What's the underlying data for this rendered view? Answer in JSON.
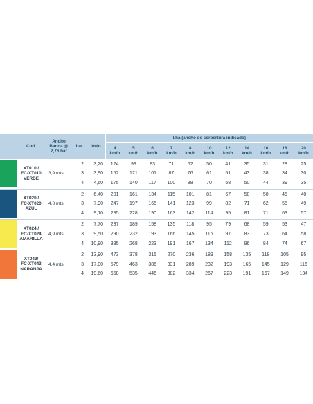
{
  "header": {
    "code": "Cod.",
    "width_lines": [
      "Ancho",
      "Banda @",
      "2,76 bar"
    ],
    "bar": "bar",
    "lmin": "l/min",
    "lha": "l/ha (ancho de corbertura indicado)",
    "speeds": [
      {
        "value": "4",
        "unit": "km/h"
      },
      {
        "value": "5",
        "unit": "km/h"
      },
      {
        "value": "6",
        "unit": "km/h"
      },
      {
        "value": "7",
        "unit": "km/h"
      },
      {
        "value": "8",
        "unit": "km/h"
      },
      {
        "value": "10",
        "unit": "km/h"
      },
      {
        "value": "12",
        "unit": "km/h"
      },
      {
        "value": "14",
        "unit": "km/h"
      },
      {
        "value": "16",
        "unit": "km/h"
      },
      {
        "value": "18",
        "unit": "km/h"
      },
      {
        "value": "20",
        "unit": "km/h"
      }
    ]
  },
  "groups": [
    {
      "code_lines": [
        "XT010 /",
        "FC-XT010",
        "VERDE"
      ],
      "width": "3,9 mts.",
      "color": "#1aa35a",
      "rows": [
        {
          "bar": "2",
          "lmin": "3,20",
          "vals": [
            "124",
            "99",
            "83",
            "71",
            "62",
            "50",
            "41",
            "35",
            "31",
            "28",
            "25"
          ]
        },
        {
          "bar": "3",
          "lmin": "3,90",
          "vals": [
            "152",
            "121",
            "101",
            "87",
            "76",
            "61",
            "51",
            "43",
            "38",
            "34",
            "30"
          ]
        },
        {
          "bar": "4",
          "lmin": "4,60",
          "vals": [
            "175",
            "140",
            "117",
            "100",
            "88",
            "70",
            "58",
            "50",
            "44",
            "39",
            "35"
          ]
        }
      ]
    },
    {
      "code_lines": [
        "XT020 /",
        "FC-XT020",
        "AZUL"
      ],
      "width": "4,8 mts.",
      "color": "#19557f",
      "rows": [
        {
          "bar": "2",
          "lmin": "6,40",
          "vals": [
            "201",
            "161",
            "134",
            "115",
            "101",
            "81",
            "67",
            "58",
            "50",
            "45",
            "40"
          ]
        },
        {
          "bar": "3",
          "lmin": "7,90",
          "vals": [
            "247",
            "197",
            "165",
            "141",
            "123",
            "99",
            "82",
            "71",
            "62",
            "55",
            "49"
          ]
        },
        {
          "bar": "4",
          "lmin": "9,10",
          "vals": [
            "285",
            "228",
            "190",
            "163",
            "142",
            "114",
            "95",
            "81",
            "71",
            "63",
            "57"
          ]
        }
      ]
    },
    {
      "code_lines": [
        "XT024 /",
        "FC-XT024",
        "AMARILLA"
      ],
      "width": "4,9 mts.",
      "color": "#f6ea4e",
      "rows": [
        {
          "bar": "2",
          "lmin": "7,70",
          "vals": [
            "237",
            "189",
            "158",
            "135",
            "118",
            "95",
            "79",
            "68",
            "59",
            "53",
            "47"
          ]
        },
        {
          "bar": "3",
          "lmin": "9,50",
          "vals": [
            "290",
            "232",
            "193",
            "166",
            "145",
            "116",
            "97",
            "83",
            "73",
            "64",
            "58"
          ]
        },
        {
          "bar": "4",
          "lmin": "10,90",
          "vals": [
            "335",
            "268",
            "223",
            "191",
            "167",
            "134",
            "112",
            "96",
            "84",
            "74",
            "67"
          ]
        }
      ]
    },
    {
      "code_lines": [
        "XT043/",
        "FC-XT043",
        "NARANJA"
      ],
      "width": "4,4 mts.",
      "color": "#f0763a",
      "rows": [
        {
          "bar": "2",
          "lmin": "13,90",
          "vals": [
            "473",
            "378",
            "315",
            "270",
            "236",
            "189",
            "158",
            "135",
            "118",
            "105",
            "95"
          ]
        },
        {
          "bar": "3",
          "lmin": "17,00",
          "vals": [
            "579",
            "463",
            "386",
            "331",
            "289",
            "232",
            "193",
            "165",
            "145",
            "129",
            "116"
          ]
        },
        {
          "bar": "4",
          "lmin": "19,60",
          "vals": [
            "668",
            "535",
            "446",
            "382",
            "334",
            "267",
            "223",
            "191",
            "167",
            "149",
            "134"
          ]
        }
      ]
    }
  ]
}
